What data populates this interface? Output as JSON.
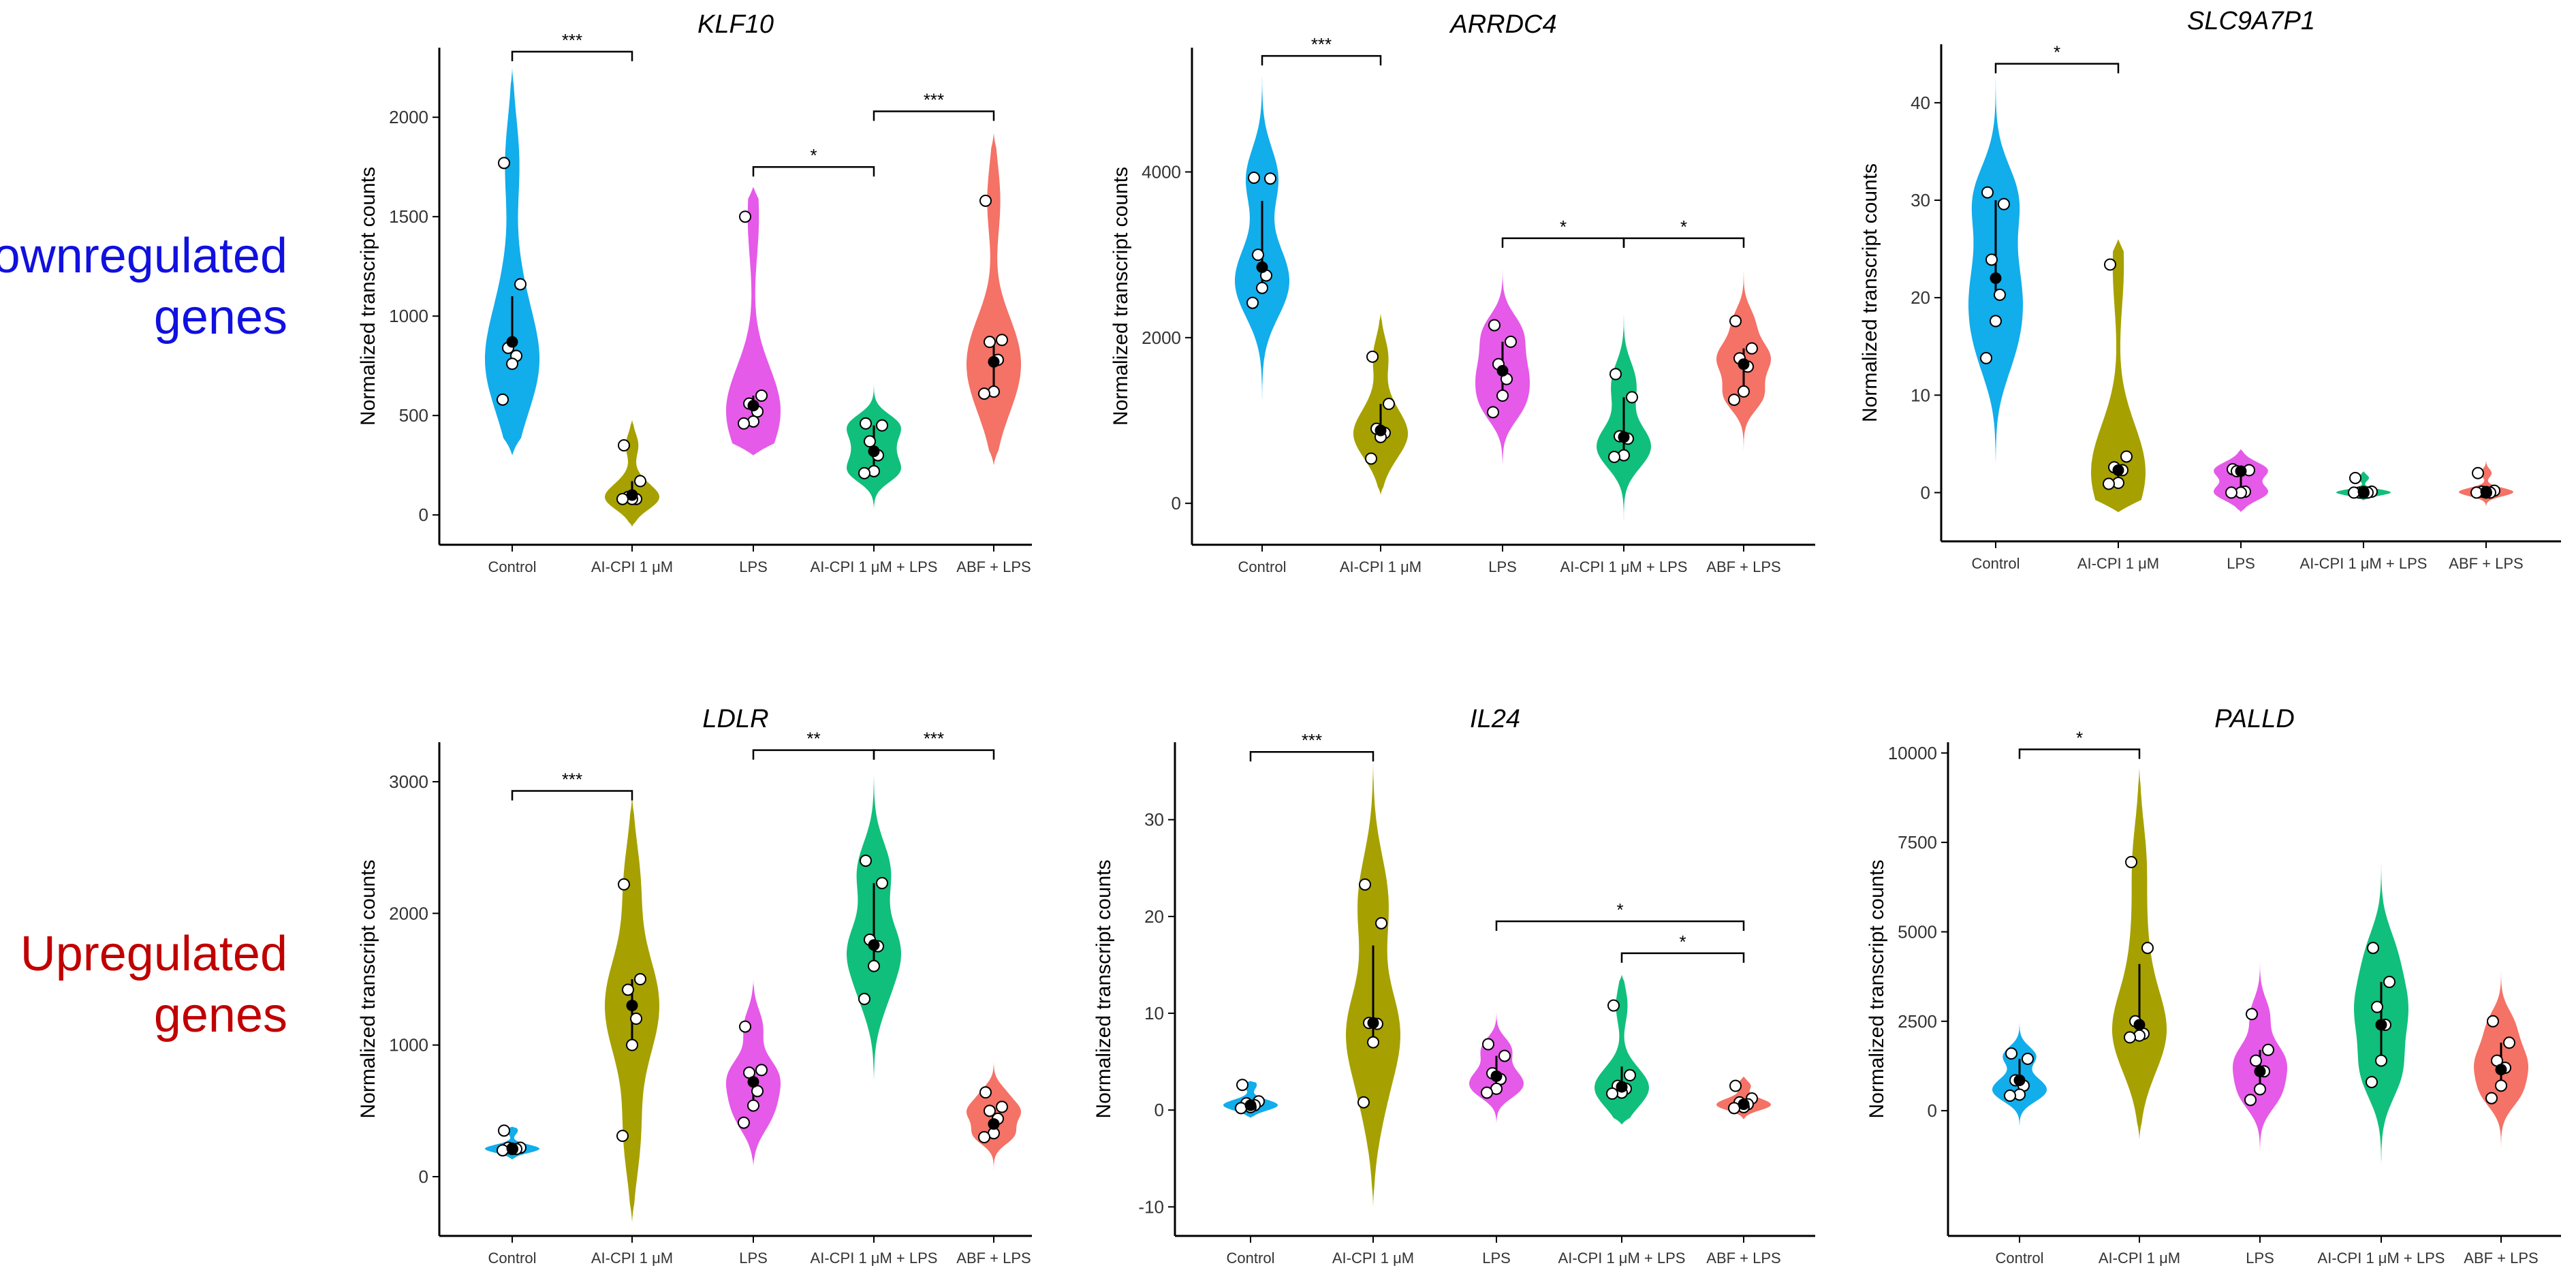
{
  "row_labels": {
    "top": [
      "Downregulated",
      "genes"
    ],
    "top_color": "#1010E0",
    "bottom": [
      "Upregulated",
      "genes"
    ],
    "bottom_color": "#C00000"
  },
  "groups": [
    "Control",
    "AI-CPI 1 μM",
    "LPS",
    "AI-CPI 1 μM + LPS",
    "ABF + LPS"
  ],
  "group_colors": [
    "#12ADEB",
    "#A6A100",
    "#E55AE8",
    "#10BF7B",
    "#F47266"
  ],
  "ylabel": "Normalized transcript counts",
  "chart_data": [
    {
      "type": "violin",
      "title": "KLF10",
      "ylim": [
        -150,
        2350
      ],
      "yticks": [
        0,
        500,
        1000,
        1500,
        2000
      ],
      "series": [
        {
          "name": "Control",
          "points": [
            1770,
            1160,
            840,
            800,
            760,
            580
          ],
          "median": 870,
          "q1": 760,
          "q3": 1100,
          "vmin": 300,
          "vmax": 2250
        },
        {
          "name": "AI-CPI 1 μM",
          "points": [
            350,
            170,
            90,
            80,
            80,
            80
          ],
          "median": 100,
          "q1": 80,
          "q3": 170,
          "vmin": -60,
          "vmax": 480
        },
        {
          "name": "LPS",
          "points": [
            1500,
            600,
            560,
            520,
            470,
            460
          ],
          "median": 550,
          "q1": 470,
          "q3": 600,
          "vmin": 300,
          "vmax": 1650
        },
        {
          "name": "AI-CPI 1 μM + LPS",
          "points": [
            460,
            450,
            370,
            300,
            220,
            210
          ],
          "median": 320,
          "q1": 220,
          "q3": 450,
          "vmin": 20,
          "vmax": 720
        },
        {
          "name": "ABF + LPS",
          "points": [
            1580,
            880,
            870,
            780,
            620,
            610
          ],
          "median": 770,
          "q1": 620,
          "q3": 880,
          "vmin": 250,
          "vmax": 1920
        }
      ],
      "brackets": [
        {
          "from": 0,
          "to": 1,
          "y": 2330,
          "label": "***"
        },
        {
          "from": 2,
          "to": 3,
          "y": 1750,
          "label": "*"
        },
        {
          "from": 3,
          "to": 4,
          "y": 2030,
          "label": "***"
        }
      ]
    },
    {
      "type": "violin",
      "title": "ARRDC4",
      "ylim": [
        -500,
        5500
      ],
      "yticks": [
        0,
        2000,
        4000
      ],
      "series": [
        {
          "name": "Control",
          "points": [
            3930,
            3920,
            3000,
            2750,
            2600,
            2420
          ],
          "median": 2850,
          "q1": 2600,
          "q3": 3650,
          "vmin": 1200,
          "vmax": 5200
        },
        {
          "name": "AI-CPI 1 μM",
          "points": [
            1770,
            1200,
            900,
            850,
            800,
            540
          ],
          "median": 880,
          "q1": 800,
          "q3": 1200,
          "vmin": 100,
          "vmax": 2300
        },
        {
          "name": "LPS",
          "points": [
            2150,
            1950,
            1680,
            1500,
            1300,
            1100
          ],
          "median": 1600,
          "q1": 1300,
          "q3": 1950,
          "vmin": 400,
          "vmax": 2900
        },
        {
          "name": "AI-CPI 1 μM + LPS",
          "points": [
            1560,
            1280,
            810,
            780,
            580,
            560
          ],
          "median": 800,
          "q1": 580,
          "q3": 1280,
          "vmin": -300,
          "vmax": 2400
        },
        {
          "name": "ABF + LPS",
          "points": [
            2200,
            1870,
            1750,
            1650,
            1350,
            1250
          ],
          "median": 1680,
          "q1": 1350,
          "q3": 1870,
          "vmin": 500,
          "vmax": 3000
        }
      ],
      "brackets": [
        {
          "from": 2,
          "to": 3,
          "y": 3200,
          "label": "*"
        },
        {
          "from": 3,
          "to": 4,
          "y": 3200,
          "label": "*"
        },
        {
          "from": 0,
          "to": 1,
          "y": 5400,
          "label": "***"
        }
      ]
    },
    {
      "type": "violin",
      "title": "SLC9A7P1",
      "ylim": [
        -5,
        46
      ],
      "yticks": [
        0,
        10,
        20,
        30,
        40
      ],
      "series": [
        {
          "name": "Control",
          "points": [
            30.8,
            29.6,
            23.9,
            20.3,
            17.6,
            13.8
          ],
          "median": 22,
          "q1": 20,
          "q3": 30,
          "vmin": 2,
          "vmax": 44
        },
        {
          "name": "AI-CPI 1 μM",
          "points": [
            23.4,
            3.7,
            2.6,
            2.3,
            1.0,
            0.9
          ],
          "median": 2.3,
          "q1": 1.0,
          "q3": 3.0,
          "vmin": -2,
          "vmax": 26
        },
        {
          "name": "LPS",
          "points": [
            2.4,
            2.3,
            2.2,
            0.1,
            0.0,
            0.0
          ],
          "median": 2.2,
          "q1": 0.0,
          "q3": 2.3,
          "vmin": -2,
          "vmax": 4.5
        },
        {
          "name": "AI-CPI 1 μM + LPS",
          "points": [
            1.5,
            0.1,
            0.0,
            0.0,
            0.0,
            0.0
          ],
          "median": 0.1,
          "q1": 0.0,
          "q3": 0.2,
          "vmin": -0.8,
          "vmax": 2.2
        },
        {
          "name": "ABF + LPS",
          "points": [
            2.0,
            0.2,
            0.1,
            0.0,
            0.0,
            0.0
          ],
          "median": 0.1,
          "q1": 0.0,
          "q3": 0.3,
          "vmin": -1.5,
          "vmax": 3.5
        }
      ],
      "brackets": [
        {
          "from": 0,
          "to": 1,
          "y": 44,
          "label": "*"
        }
      ]
    },
    {
      "type": "violin",
      "title": "LDLR",
      "ylim": [
        -450,
        3300
      ],
      "yticks": [
        0,
        1000,
        2000,
        3000
      ],
      "series": [
        {
          "name": "Control",
          "points": [
            350,
            220,
            220,
            210,
            210,
            200
          ],
          "median": 215,
          "q1": 205,
          "q3": 230,
          "vmin": 130,
          "vmax": 380
        },
        {
          "name": "AI-CPI 1 μM",
          "points": [
            2220,
            1500,
            1420,
            1200,
            1000,
            310
          ],
          "median": 1300,
          "q1": 1000,
          "q3": 1500,
          "vmin": -350,
          "vmax": 2900
        },
        {
          "name": "LPS",
          "points": [
            1140,
            810,
            790,
            650,
            540,
            410
          ],
          "median": 720,
          "q1": 540,
          "q3": 810,
          "vmin": 80,
          "vmax": 1500
        },
        {
          "name": "AI-CPI 1 μM + LPS",
          "points": [
            2400,
            2230,
            1800,
            1750,
            1600,
            1350
          ],
          "median": 1760,
          "q1": 1600,
          "q3": 2230,
          "vmin": 700,
          "vmax": 3100
        },
        {
          "name": "ABF + LPS",
          "points": [
            640,
            530,
            500,
            440,
            330,
            300
          ],
          "median": 400,
          "q1": 330,
          "q3": 530,
          "vmin": 0,
          "vmax": 880
        }
      ],
      "brackets": [
        {
          "from": 0,
          "to": 1,
          "y": 2930,
          "label": "***"
        },
        {
          "from": 2,
          "to": 3,
          "y": 3240,
          "label": "**"
        },
        {
          "from": 3,
          "to": 4,
          "y": 3240,
          "label": "***"
        }
      ]
    },
    {
      "type": "violin",
      "title": "IL24",
      "ylim": [
        -13,
        38
      ],
      "yticks": [
        -10,
        0,
        10,
        20,
        30
      ],
      "series": [
        {
          "name": "Control",
          "points": [
            2.6,
            0.9,
            0.7,
            0.5,
            0.3,
            0.2
          ],
          "median": 0.5,
          "q1": 0.3,
          "q3": 0.9,
          "vmin": -0.8,
          "vmax": 3.0
        },
        {
          "name": "AI-CPI 1 μM",
          "points": [
            23.3,
            19.3,
            9.0,
            8.9,
            7.0,
            0.8
          ],
          "median": 9.0,
          "q1": 7.0,
          "q3": 17.0,
          "vmin": -10,
          "vmax": 36
        },
        {
          "name": "LPS",
          "points": [
            6.8,
            5.6,
            3.8,
            3.2,
            2.2,
            1.8
          ],
          "median": 3.5,
          "q1": 2.2,
          "q3": 5.6,
          "vmin": -1.5,
          "vmax": 10.5
        },
        {
          "name": "AI-CPI 1 μM + LPS",
          "points": [
            10.8,
            3.6,
            2.5,
            2.2,
            1.8,
            1.7
          ],
          "median": 2.4,
          "q1": 1.8,
          "q3": 4.5,
          "vmin": -1.5,
          "vmax": 14
        },
        {
          "name": "ABF + LPS",
          "points": [
            2.5,
            1.2,
            0.8,
            0.6,
            0.3,
            0.2
          ],
          "median": 0.6,
          "q1": 0.3,
          "q3": 1.2,
          "vmin": -1.0,
          "vmax": 3.5
        }
      ],
      "brackets": [
        {
          "from": 0,
          "to": 1,
          "y": 37,
          "label": "***"
        },
        {
          "from": 2,
          "to": 4,
          "y": 19.5,
          "label": "*"
        },
        {
          "from": 3,
          "to": 4,
          "y": 16.2,
          "label": "*"
        }
      ]
    },
    {
      "type": "violin",
      "title": "PALLD",
      "ylim": [
        -3500,
        10300
      ],
      "yticks": [
        0,
        2500,
        5000,
        7500,
        10000
      ],
      "series": [
        {
          "name": "Control",
          "points": [
            1600,
            1450,
            850,
            700,
            450,
            420
          ],
          "median": 850,
          "q1": 450,
          "q3": 1450,
          "vmin": -500,
          "vmax": 2600
        },
        {
          "name": "AI-CPI 1 μM",
          "points": [
            6950,
            4550,
            2500,
            2150,
            2100,
            2050
          ],
          "median": 2400,
          "q1": 2100,
          "q3": 4100,
          "vmin": -800,
          "vmax": 9600
        },
        {
          "name": "LPS",
          "points": [
            2700,
            1700,
            1400,
            1100,
            600,
            300
          ],
          "median": 1100,
          "q1": 600,
          "q3": 1700,
          "vmin": -1200,
          "vmax": 4200
        },
        {
          "name": "AI-CPI 1 μM + LPS",
          "points": [
            4550,
            3600,
            2900,
            2400,
            1400,
            800
          ],
          "median": 2400,
          "q1": 1400,
          "q3": 3600,
          "vmin": -1700,
          "vmax": 7200
        },
        {
          "name": "ABF + LPS",
          "points": [
            2500,
            1900,
            1400,
            1200,
            700,
            350
          ],
          "median": 1150,
          "q1": 700,
          "q3": 1900,
          "vmin": -1200,
          "vmax": 4000
        }
      ],
      "brackets": [
        {
          "from": 0,
          "to": 1,
          "y": 10100,
          "label": "*"
        }
      ]
    }
  ]
}
